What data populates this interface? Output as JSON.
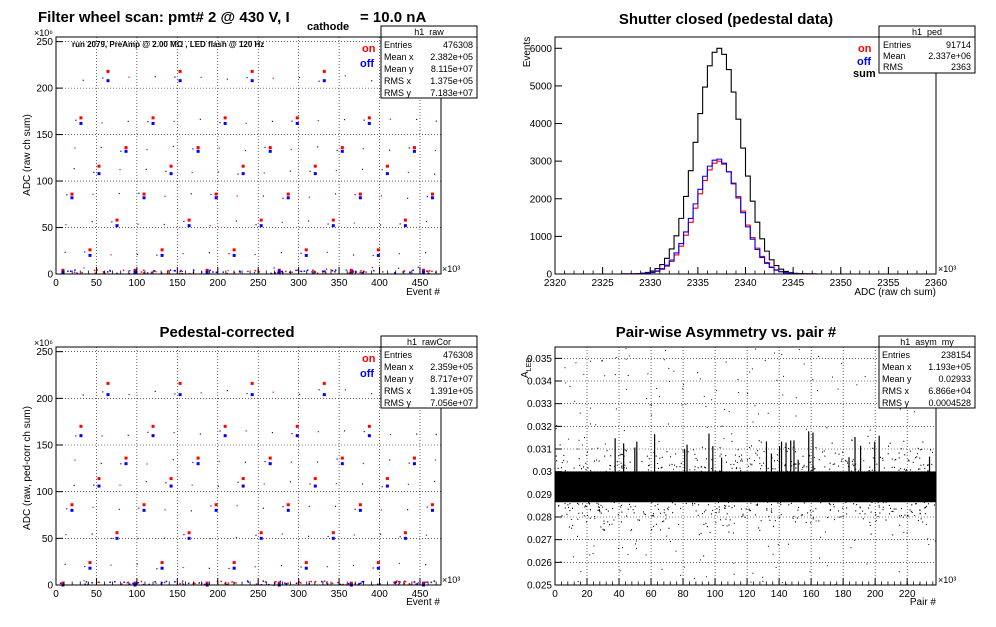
{
  "colors": {
    "on": "#ff0000",
    "off": "#0000ff",
    "sum": "#000000",
    "frame": "#000000"
  },
  "chart_data": [
    {
      "type": "scatter",
      "title_main": "Filter wheel scan: pmt#   2 @   430 V, I",
      "title_sub": "cathode",
      "title_tail": "= 10.0 nA",
      "subtitle": "run 2079, PreAmp @ 2.00 MΩ , LED flash @  120 Hz",
      "xlabel": "Event #",
      "ylabel": "ADC (raw ch sum)",
      "x_multiplier": "×10³",
      "y_multiplier": "×10⁶",
      "xlim": [
        0,
        476
      ],
      "ylim": [
        0,
        255
      ],
      "xticks": [
        0,
        50,
        100,
        150,
        200,
        250,
        300,
        350,
        400,
        450
      ],
      "yticks": [
        0,
        50,
        100,
        150,
        200,
        250
      ],
      "grid": true,
      "legend": [
        {
          "label": "on",
          "color": "#ff0000"
        },
        {
          "label": "off",
          "color": "#0000ff"
        }
      ],
      "stats": {
        "name": "h1_raw",
        "rows": [
          [
            "Entries",
            "476308"
          ],
          [
            "Mean x",
            "2.382e+05"
          ],
          [
            "Mean y",
            "8.115e+07"
          ],
          [
            "RMS x",
            "1.375e+05"
          ],
          [
            "RMS y",
            "7.183e+07"
          ]
        ]
      },
      "levels_on": [
        4,
        26,
        58,
        86,
        116,
        136,
        168,
        218
      ],
      "levels_off": [
        2,
        20,
        52,
        82,
        108,
        132,
        162,
        208
      ]
    },
    {
      "type": "line",
      "title": "Shutter closed (pedestal data)",
      "xlabel": "ADC (raw ch sum)",
      "ylabel": "Events",
      "x_multiplier": "×10³",
      "xlim": [
        2320,
        2360
      ],
      "ylim": [
        0,
        6300
      ],
      "xticks": [
        2320,
        2325,
        2330,
        2335,
        2340,
        2345,
        2350,
        2355,
        2360
      ],
      "yticks": [
        0,
        1000,
        2000,
        3000,
        4000,
        5000,
        6000
      ],
      "grid": false,
      "legend": [
        {
          "label": "on",
          "color": "#ff0000"
        },
        {
          "label": "off",
          "color": "#0000ff"
        },
        {
          "label": "sum",
          "color": "#000000"
        }
      ],
      "stats": {
        "name": "h1_ped",
        "rows": [
          [
            "Entries",
            "91714"
          ],
          [
            "Mean",
            "2.337e+06"
          ],
          [
            "RMS",
            "2363"
          ]
        ]
      },
      "bin_width": 0.5,
      "series": [
        {
          "name": "sum",
          "color": "#000000",
          "center": 2337.2,
          "sigma": 2.36,
          "peak": 6000
        },
        {
          "name": "on",
          "color": "#ff0000",
          "center": 2337.2,
          "sigma": 2.36,
          "peak": 3000
        },
        {
          "name": "off",
          "color": "#0000ff",
          "center": 2337.1,
          "sigma": 2.36,
          "peak": 3060
        }
      ]
    },
    {
      "type": "scatter",
      "title": "Pedestal-corrected",
      "xlabel": "Event #",
      "ylabel": "ADC (raw, ped-corr ch sum)",
      "x_multiplier": "×10³",
      "y_multiplier": "×10⁶",
      "xlim": [
        0,
        476
      ],
      "ylim": [
        0,
        255
      ],
      "xticks": [
        0,
        50,
        100,
        150,
        200,
        250,
        300,
        350,
        400,
        450
      ],
      "yticks": [
        0,
        50,
        100,
        150,
        200,
        250
      ],
      "grid": true,
      "legend": [
        {
          "label": "on",
          "color": "#ff0000"
        },
        {
          "label": "off",
          "color": "#0000ff"
        }
      ],
      "stats": {
        "name": "h1_rawCor",
        "rows": [
          [
            "Entries",
            "476308"
          ],
          [
            "Mean x",
            "2.359e+05"
          ],
          [
            "Mean y",
            "8.717e+07"
          ],
          [
            "RMS x",
            "1.391e+05"
          ],
          [
            "RMS y",
            "7.056e+07"
          ]
        ]
      },
      "levels_on": [
        2,
        24,
        56,
        86,
        114,
        136,
        170,
        216
      ],
      "levels_off": [
        0,
        18,
        50,
        80,
        106,
        130,
        160,
        204
      ]
    },
    {
      "type": "scatter",
      "title": "Pair-wise Asymmetry vs. pair #",
      "xlabel": "Pair #",
      "ylabel": "A",
      "ylabel_sub": "LED",
      "x_multiplier": "×10³",
      "xlim": [
        0,
        238
      ],
      "ylim": [
        0.025,
        0.0355
      ],
      "xticks": [
        0,
        20,
        40,
        60,
        80,
        100,
        120,
        140,
        160,
        180,
        200,
        220
      ],
      "yticks": [
        0.025,
        0.026,
        0.027,
        0.028,
        0.029,
        0.03,
        0.031,
        0.032,
        0.033,
        0.034,
        0.035
      ],
      "grid": true,
      "stats": {
        "name": "h1_asym_my",
        "rows": [
          [
            "Entries",
            "238154"
          ],
          [
            "Mean x",
            "1.193e+05"
          ],
          [
            "Mean y",
            "0.02933"
          ],
          [
            "RMS x",
            "6.866e+04"
          ],
          [
            "RMS y",
            "0.0004528"
          ]
        ]
      },
      "mean_y": 0.02933,
      "rms_y": 0.0004528
    }
  ]
}
